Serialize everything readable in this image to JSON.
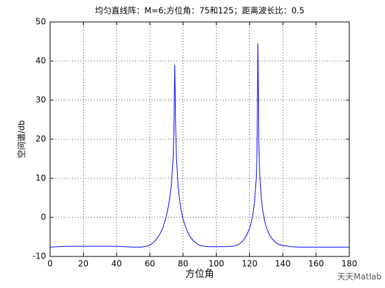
{
  "chart_data": {
    "type": "line",
    "title": "均匀直线阵：M=6;方位角：75和125；距离波长比：0.5",
    "xlabel": "方位角",
    "ylabel": "空间谱/db",
    "x": [
      0,
      5,
      10,
      15,
      20,
      25,
      30,
      35,
      40,
      45,
      50,
      55,
      58,
      60,
      62,
      64,
      66,
      68,
      70,
      71,
      72,
      73,
      74,
      74.5,
      75,
      75.5,
      76,
      77,
      78,
      79,
      80,
      82,
      84,
      86,
      88,
      90,
      95,
      100,
      105,
      110,
      112,
      114,
      116,
      118,
      120,
      121,
      122,
      123,
      124,
      124.5,
      125,
      125.5,
      126,
      127,
      128,
      129,
      130,
      132,
      134,
      136,
      138,
      140,
      145,
      150,
      160,
      170,
      180
    ],
    "values": [
      -7.6,
      -7.5,
      -7.4,
      -7.4,
      -7.4,
      -7.4,
      -7.4,
      -7.4,
      -7.4,
      -7.5,
      -7.6,
      -7.6,
      -7.4,
      -7.1,
      -6.5,
      -5.6,
      -4.3,
      -2.5,
      0.5,
      2.5,
      5,
      8.5,
      15,
      22,
      39,
      24,
      15.5,
      8,
      4,
      1.5,
      -0.5,
      -3,
      -4.8,
      -5.9,
      -6.6,
      -7.2,
      -7.5,
      -7.5,
      -7.5,
      -7.4,
      -7.2,
      -6.8,
      -6,
      -4.8,
      -2.8,
      -1.3,
      0.8,
      4,
      10,
      17,
      44.5,
      20,
      12,
      5,
      1.5,
      -0.8,
      -2.5,
      -4.5,
      -5.7,
      -6.5,
      -7,
      -7.2,
      -7.5,
      -7.6,
      -7.6,
      -7.6,
      -7.6
    ],
    "color": "#0000ff",
    "xlim": [
      0,
      180
    ],
    "xticks": [
      0,
      20,
      40,
      60,
      80,
      100,
      120,
      140,
      160,
      180
    ],
    "ylim": [
      -10,
      50
    ],
    "yticks": [
      -10,
      0,
      10,
      20,
      30,
      40,
      50
    ],
    "grid": true
  },
  "watermark": "天天Matlab"
}
